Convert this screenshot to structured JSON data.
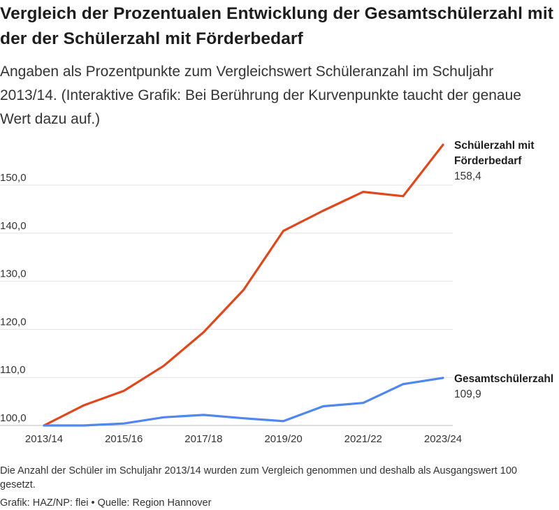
{
  "title": "Vergleich der Prozentualen Entwicklung der Gesamtschülerzahl mit der der Schülerzahl mit Förderbedarf",
  "subtitle": "Angaben als Prozentpunkte zum Vergleichswert Schüleranzahl im Schuljahr 2013/14. (Interaktive Grafik: Bei Berührung der Kurvenpunkte taucht der genaue Wert dazu auf.)",
  "notes": "Die Anzahl der Schüler im Schuljahr 2013/14 wurden zum Vergleich genommen und deshalb als Ausgangswert 100 gesetzt.",
  "credit": {
    "grafik": "Grafik: HAZ/NP: flei",
    "bullet": "•",
    "quelle": "Quelle: Region Hannover"
  },
  "chart_data": {
    "type": "line",
    "x": [
      "2013/14",
      "2014/15",
      "2015/16",
      "2016/17",
      "2017/18",
      "2018/19",
      "2019/20",
      "2020/21",
      "2021/22",
      "2022/23",
      "2023/24"
    ],
    "xticks": [
      "2013/14",
      "2015/16",
      "2017/18",
      "2019/20",
      "2021/22",
      "2023/24"
    ],
    "yticks": [
      "100,0",
      "110,0",
      "120,0",
      "130,0",
      "140,0",
      "150,0"
    ],
    "ylim": [
      100,
      158.4
    ],
    "grid": true,
    "series": [
      {
        "name": "Schülerzahl mit Förderbedarf",
        "label_lines": [
          "Schülerzahl mit",
          "Förderbedarf"
        ],
        "last_label": "158,4",
        "color": "#e1471b",
        "values": [
          100.0,
          104.2,
          107.2,
          112.4,
          119.4,
          128.2,
          140.5,
          144.7,
          148.6,
          147.7,
          158.4
        ]
      },
      {
        "name": "Gesamtschülerzahl",
        "label_lines": [
          "Gesamtschülerzahl"
        ],
        "last_label": "109,9",
        "color": "#4f86f0",
        "values": [
          100.0,
          100.0,
          100.4,
          101.7,
          102.2,
          101.5,
          100.9,
          104.0,
          104.7,
          108.6,
          109.9
        ]
      }
    ]
  }
}
